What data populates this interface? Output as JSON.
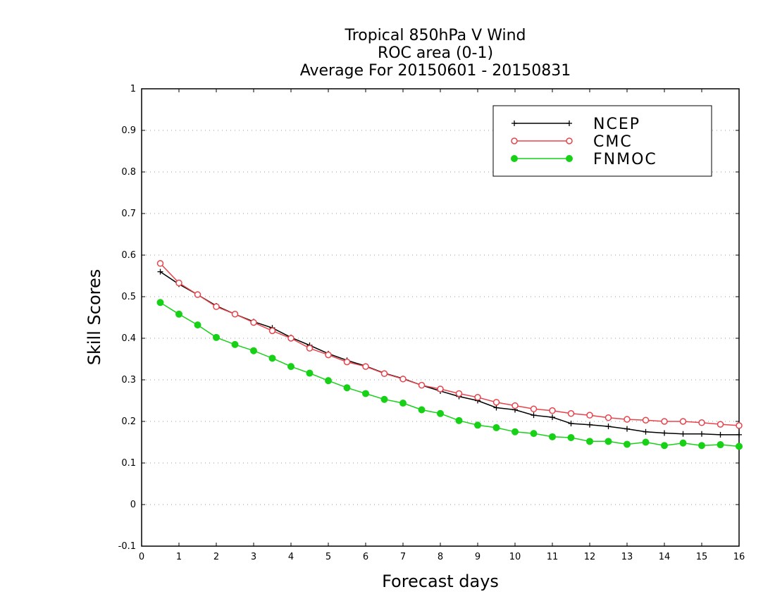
{
  "chart_data": {
    "type": "line",
    "title": [
      "Tropical 850hPa V Wind",
      "ROC area (0-1)",
      "Average For 20150601 - 20150831"
    ],
    "xlabel": "Forecast days",
    "ylabel": "Skill Scores",
    "xlim": [
      0,
      16
    ],
    "ylim": [
      -0.1,
      1
    ],
    "xticks": [
      "0",
      "1",
      "2",
      "3",
      "4",
      "5",
      "6",
      "7",
      "8",
      "9",
      "10",
      "11",
      "12",
      "13",
      "14",
      "15",
      "16"
    ],
    "yticks": [
      "-0.1",
      "0",
      "0.1",
      "0.2",
      "0.3",
      "0.4",
      "0.5",
      "0.6",
      "0.7",
      "0.8",
      "0.9",
      "1"
    ],
    "grid": "dotted horizontal",
    "legend_position": "top-right",
    "x": [
      0.5,
      1,
      1.5,
      2,
      2.5,
      3,
      3.5,
      4,
      4.5,
      5,
      5.5,
      6,
      6.5,
      7,
      7.5,
      8,
      8.5,
      9,
      9.5,
      10,
      10.5,
      11,
      11.5,
      12,
      12.5,
      13,
      13.5,
      14,
      14.5,
      15,
      15.5,
      16
    ],
    "series": [
      {
        "name": "NCEP",
        "color": "#000000",
        "marker": "plus",
        "values": [
          0.56,
          0.53,
          0.505,
          0.478,
          0.458,
          0.44,
          0.425,
          0.402,
          0.383,
          0.363,
          0.347,
          0.333,
          0.316,
          0.303,
          0.287,
          0.273,
          0.26,
          0.25,
          0.233,
          0.228,
          0.215,
          0.21,
          0.195,
          0.192,
          0.188,
          0.182,
          0.175,
          0.172,
          0.17,
          0.17,
          0.168,
          0.168
        ]
      },
      {
        "name": "CMC",
        "color": "#e8434b",
        "marker": "open-circle",
        "values": [
          0.58,
          0.533,
          0.505,
          0.476,
          0.458,
          0.438,
          0.418,
          0.4,
          0.376,
          0.36,
          0.343,
          0.332,
          0.315,
          0.302,
          0.287,
          0.278,
          0.267,
          0.258,
          0.246,
          0.238,
          0.23,
          0.226,
          0.219,
          0.215,
          0.209,
          0.205,
          0.203,
          0.2,
          0.2,
          0.197,
          0.193,
          0.19
        ]
      },
      {
        "name": "FNMOC",
        "color": "#17d117",
        "marker": "filled-circle",
        "values": [
          0.486,
          0.458,
          0.432,
          0.402,
          0.385,
          0.37,
          0.352,
          0.332,
          0.316,
          0.298,
          0.281,
          0.267,
          0.253,
          0.244,
          0.228,
          0.219,
          0.202,
          0.191,
          0.185,
          0.175,
          0.171,
          0.163,
          0.161,
          0.152,
          0.152,
          0.145,
          0.15,
          0.142,
          0.148,
          0.142,
          0.144,
          0.14
        ]
      }
    ]
  }
}
